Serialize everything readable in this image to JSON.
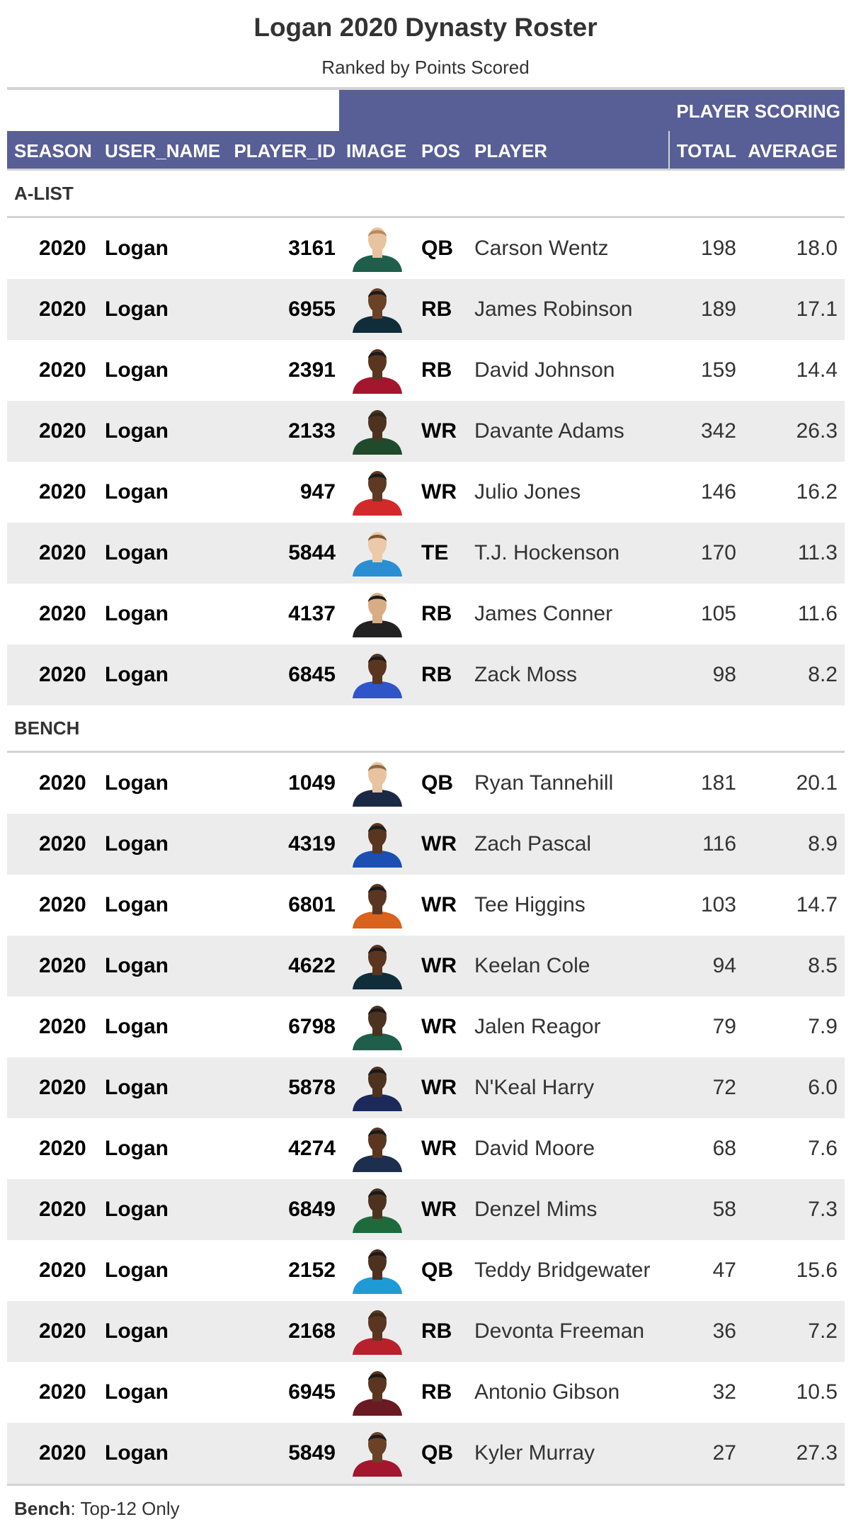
{
  "title": "Logan 2020 Dynasty Roster",
  "subtitle": "Ranked by Points Scored",
  "spanner": "PLAYER SCORING",
  "columns": {
    "season": "SEASON",
    "user_name": "USER_NAME",
    "player_id": "PLAYER_ID",
    "image": "IMAGE",
    "pos": "POS",
    "player": "PLAYER",
    "total": "TOTAL",
    "average": "AVERAGE"
  },
  "colors": {
    "header_bg": "#585e96",
    "stripe": "#ececec",
    "rule": "#d3d3d3"
  },
  "groups": [
    {
      "label": "A-LIST",
      "rows": [
        {
          "season": "2020",
          "user": "Logan",
          "id": "3161",
          "pos": "QB",
          "player": "Carson Wentz",
          "total": "198",
          "avg": "18.0",
          "jersey": "#1f5e4a",
          "skin": "#e8c3a0",
          "hair": "#b58a5a"
        },
        {
          "season": "2020",
          "user": "Logan",
          "id": "6955",
          "pos": "RB",
          "player": "James Robinson",
          "total": "189",
          "avg": "17.1",
          "jersey": "#0f2d3a",
          "skin": "#6b4226",
          "hair": "#1a1a1a"
        },
        {
          "season": "2020",
          "user": "Logan",
          "id": "2391",
          "pos": "RB",
          "player": "David Johnson",
          "total": "159",
          "avg": "14.4",
          "jersey": "#a3162e",
          "skin": "#5a3620",
          "hair": "#1a1a1a"
        },
        {
          "season": "2020",
          "user": "Logan",
          "id": "2133",
          "pos": "WR",
          "player": "Davante Adams",
          "total": "342",
          "avg": "26.3",
          "jersey": "#1f4a2c",
          "skin": "#4e3220",
          "hair": "#2a2a1a"
        },
        {
          "season": "2020",
          "user": "Logan",
          "id": "947",
          "pos": "WR",
          "player": "Julio Jones",
          "total": "146",
          "avg": "16.2",
          "jersey": "#d22a2a",
          "skin": "#5e3a22",
          "hair": "#1a1a1a"
        },
        {
          "season": "2020",
          "user": "Logan",
          "id": "5844",
          "pos": "TE",
          "player": "T.J. Hockenson",
          "total": "170",
          "avg": "11.3",
          "jersey": "#2a8fd2",
          "skin": "#ecc9a8",
          "hair": "#7a5532"
        },
        {
          "season": "2020",
          "user": "Logan",
          "id": "4137",
          "pos": "RB",
          "player": "James Conner",
          "total": "105",
          "avg": "11.6",
          "jersey": "#222222",
          "skin": "#d9ad84",
          "hair": "#1a1a1a"
        },
        {
          "season": "2020",
          "user": "Logan",
          "id": "6845",
          "pos": "RB",
          "player": "Zack Moss",
          "total": "98",
          "avg": "8.2",
          "jersey": "#2f55c9",
          "skin": "#5a3620",
          "hair": "#1a1a1a"
        }
      ]
    },
    {
      "label": "BENCH",
      "rows": [
        {
          "season": "2020",
          "user": "Logan",
          "id": "1049",
          "pos": "QB",
          "player": "Ryan Tannehill",
          "total": "181",
          "avg": "20.1",
          "jersey": "#1b2a44",
          "skin": "#e8c3a0",
          "hair": "#8a6a4a"
        },
        {
          "season": "2020",
          "user": "Logan",
          "id": "4319",
          "pos": "WR",
          "player": "Zach Pascal",
          "total": "116",
          "avg": "8.9",
          "jersey": "#1b4fb0",
          "skin": "#5a3620",
          "hair": "#1a1a1a"
        },
        {
          "season": "2020",
          "user": "Logan",
          "id": "6801",
          "pos": "WR",
          "player": "Tee Higgins",
          "total": "103",
          "avg": "14.7",
          "jersey": "#d8621e",
          "skin": "#5a3620",
          "hair": "#1a1a1a"
        },
        {
          "season": "2020",
          "user": "Logan",
          "id": "4622",
          "pos": "WR",
          "player": "Keelan Cole",
          "total": "94",
          "avg": "8.5",
          "jersey": "#0f2d3a",
          "skin": "#5a3620",
          "hair": "#1a1a1a"
        },
        {
          "season": "2020",
          "user": "Logan",
          "id": "6798",
          "pos": "WR",
          "player": "Jalen Reagor",
          "total": "79",
          "avg": "7.9",
          "jersey": "#1f5e4a",
          "skin": "#4e3220",
          "hair": "#1a1a1a"
        },
        {
          "season": "2020",
          "user": "Logan",
          "id": "5878",
          "pos": "WR",
          "player": "N'Keal Harry",
          "total": "72",
          "avg": "6.0",
          "jersey": "#1b2a5a",
          "skin": "#4e3220",
          "hair": "#1a1a1a"
        },
        {
          "season": "2020",
          "user": "Logan",
          "id": "4274",
          "pos": "WR",
          "player": "David Moore",
          "total": "68",
          "avg": "7.6",
          "jersey": "#1c2f4f",
          "skin": "#5a3620",
          "hair": "#1a1a1a"
        },
        {
          "season": "2020",
          "user": "Logan",
          "id": "6849",
          "pos": "WR",
          "player": "Denzel Mims",
          "total": "58",
          "avg": "7.3",
          "jersey": "#1f6a3c",
          "skin": "#4e3220",
          "hair": "#1a1a1a"
        },
        {
          "season": "2020",
          "user": "Logan",
          "id": "2152",
          "pos": "QB",
          "player": "Teddy Bridgewater",
          "total": "47",
          "avg": "15.6",
          "jersey": "#1e9ad6",
          "skin": "#4e3220",
          "hair": "#1a1a1a"
        },
        {
          "season": "2020",
          "user": "Logan",
          "id": "2168",
          "pos": "RB",
          "player": "Devonta Freeman",
          "total": "36",
          "avg": "7.2",
          "jersey": "#b8202c",
          "skin": "#5a3620",
          "hair": "#3a2a1a"
        },
        {
          "season": "2020",
          "user": "Logan",
          "id": "6945",
          "pos": "RB",
          "player": "Antonio Gibson",
          "total": "32",
          "avg": "10.5",
          "jersey": "#6a1a22",
          "skin": "#5a3620",
          "hair": "#1a1a1a"
        },
        {
          "season": "2020",
          "user": "Logan",
          "id": "5849",
          "pos": "QB",
          "player": "Kyler Murray",
          "total": "27",
          "avg": "27.3",
          "jersey": "#a3162e",
          "skin": "#6b4226",
          "hair": "#1a1a1a"
        }
      ]
    }
  ],
  "footnote": {
    "label": "Bench",
    "text": ": Top-12 Only"
  }
}
